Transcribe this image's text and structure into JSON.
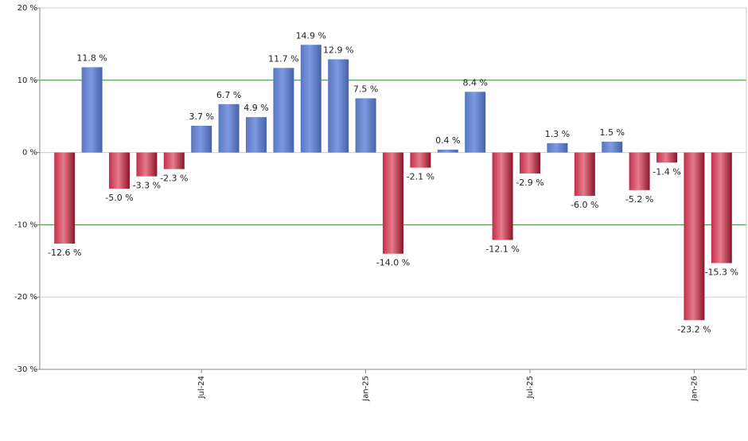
{
  "chart_data": {
    "type": "bar",
    "categories": [
      null,
      null,
      null,
      null,
      null,
      "Jul-24",
      null,
      null,
      null,
      null,
      null,
      "Jan-25",
      null,
      null,
      null,
      null,
      null,
      "Jul-25",
      null,
      null,
      null,
      null,
      null,
      "Jan-26",
      null
    ],
    "values": [
      -12.6,
      11.8,
      -5.0,
      -3.3,
      -2.3,
      3.7,
      6.7,
      4.9,
      11.7,
      14.9,
      12.9,
      7.5,
      -14.0,
      -2.1,
      0.4,
      8.4,
      -12.1,
      -2.9,
      1.3,
      -6.0,
      1.5,
      -5.2,
      -1.4,
      -23.2,
      -15.3
    ],
    "value_labels": [
      "-12.6 %",
      "11.8 %",
      "-5.0 %",
      "-3.3 %",
      "-2.3 %",
      "3.7 %",
      "6.7 %",
      "4.9 %",
      "11.7 %",
      "14.9 %",
      "12.9 %",
      "7.5 %",
      "-14.0 %",
      "-2.1 %",
      "0.4 %",
      "8.4 %",
      "-12.1 %",
      "-2.9 %",
      "1.3 %",
      "-6.0 %",
      "1.5 %",
      "-5.2 %",
      "-1.4 %",
      "-23.2 %",
      "-15.3 %"
    ],
    "positive_color": "#7b9ae0",
    "negative_color": "#c0304a",
    "ylim": [
      -30,
      20
    ],
    "yticks": [
      {
        "value": -30,
        "label": "-30 %"
      },
      {
        "value": -20,
        "label": "-20 %"
      },
      {
        "value": -10,
        "label": "-10 %"
      },
      {
        "value": 0,
        "label": "0 %"
      },
      {
        "value": 10,
        "label": "10 %"
      },
      {
        "value": 20,
        "label": "20 %"
      }
    ],
    "grid": true,
    "grid_colors": [
      "#cccccc",
      "#cccccc",
      "#2e8b2e",
      "#cccccc",
      "#2e8b2e",
      "#cccccc"
    ]
  }
}
